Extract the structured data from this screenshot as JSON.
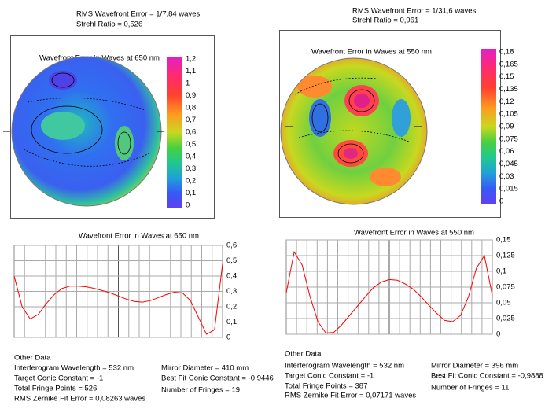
{
  "panels": [
    {
      "header": {
        "rms": "RMS Wavefront Error = 1/7,84 waves",
        "strehl": "Strehl Ratio = 0,526"
      },
      "map": {
        "title": "Wavefront Error in Waves at 650 nm",
        "colorbar_ticks": [
          {
            "value": 1.2,
            "label": "1,2"
          },
          {
            "value": 1.1,
            "label": "1,1"
          },
          1,
          {
            "value": 0.9,
            "label": "0,9"
          },
          {
            "value": 0.8,
            "label": "0,8"
          },
          {
            "value": 0.7,
            "label": "0,7"
          },
          {
            "value": 0.6,
            "label": "0,6"
          },
          {
            "value": 0.5,
            "label": "0,5"
          },
          {
            "value": 0.4,
            "label": "0,4"
          },
          {
            "value": 0.3,
            "label": "0,3"
          },
          {
            "value": 0.2,
            "label": "0,2"
          },
          {
            "value": 0.1,
            "label": "0,1"
          },
          0
        ]
      },
      "other_data": {
        "title": "Other Data",
        "wavelength": "Interferogram Wavelength = 532 nm",
        "target_conic": "Target Conic Constant = -1",
        "fringe_points": "Total Fringe Points = 526",
        "zernike_error": "RMS Zernike Fit Error = 0,08263 waves",
        "diameter": "Mirror Diameter = 410 mm",
        "best_conic": "Best Fit Conic Constant = -0,9446",
        "fringes": "Number of Fringes = 19"
      }
    },
    {
      "header": {
        "rms": "RMS Wavefront Error = 1/31,6 waves",
        "strehl": "Strehl Ratio = 0,961"
      },
      "map": {
        "title": "Wavefront Error in Waves at 550 nm",
        "colorbar_ticks": [
          {
            "value": 0.18,
            "label": "0,18"
          },
          {
            "value": 0.165,
            "label": "0,165"
          },
          {
            "value": 0.15,
            "label": "0,15"
          },
          {
            "value": 0.135,
            "label": "0,135"
          },
          {
            "value": 0.12,
            "label": "0,12"
          },
          {
            "value": 0.105,
            "label": "0,105"
          },
          {
            "value": 0.09,
            "label": "0,09"
          },
          {
            "value": 0.075,
            "label": "0,075"
          },
          {
            "value": 0.06,
            "label": "0,06"
          },
          {
            "value": 0.045,
            "label": "0,045"
          },
          {
            "value": 0.03,
            "label": "0,03"
          },
          {
            "value": 0.015,
            "label": "0,015"
          },
          0
        ]
      },
      "other_data": {
        "title": "Other Data",
        "wavelength": "Interferogram Wavelength = 532 nm",
        "target_conic": "Target Conic Constant = -1",
        "fringe_points": "Total Fringe Points = 387",
        "zernike_error": "RMS Zernike Fit Error = 0,07171 waves",
        "diameter": "Mirror Diameter = 396 mm",
        "best_conic": "Best Fit Conic Constant = -0,9888",
        "fringes": "Number of Fringes = 11"
      }
    }
  ],
  "chart_data": [
    {
      "type": "line",
      "title": "Wavefront Error in Waves at 650 nm",
      "color": "#ff0000",
      "grid": true,
      "values": [
        0.4,
        0.2,
        0.12,
        0.15,
        0.22,
        0.28,
        0.32,
        0.335,
        0.335,
        0.33,
        0.32,
        0.305,
        0.29,
        0.27,
        0.25,
        0.235,
        0.23,
        0.24,
        0.26,
        0.28,
        0.295,
        0.29,
        0.24,
        0.13,
        0.02,
        0.05,
        0.48
      ],
      "ylim": [
        0,
        0.6
      ],
      "yticks": [
        0,
        {
          "value": 0.1,
          "label": "0,1"
        },
        {
          "value": 0.2,
          "label": "0,2"
        },
        {
          "value": 0.3,
          "label": "0,3"
        },
        {
          "value": 0.4,
          "label": "0,4"
        },
        {
          "value": 0.5,
          "label": "0,5"
        },
        {
          "value": 0.6,
          "label": "0,6"
        }
      ]
    },
    {
      "type": "line",
      "title": "Wavefront Error in Waves at 550 nm",
      "color": "#ff0000",
      "grid": true,
      "values": [
        0.066,
        0.131,
        0.11,
        0.06,
        0.02,
        0.002,
        0.003,
        0.015,
        0.03,
        0.045,
        0.06,
        0.074,
        0.083,
        0.087,
        0.086,
        0.08,
        0.072,
        0.06,
        0.046,
        0.033,
        0.022,
        0.02,
        0.03,
        0.06,
        0.105,
        0.125,
        0.062
      ],
      "ylim": [
        0,
        0.15
      ],
      "yticks": [
        0,
        {
          "value": 0.025,
          "label": "0,025"
        },
        {
          "value": 0.05,
          "label": "0,05"
        },
        {
          "value": 0.075,
          "label": "0,075"
        },
        {
          "value": 0.1,
          "label": "0,1"
        },
        {
          "value": 0.125,
          "label": "0,125"
        },
        {
          "value": 0.15,
          "label": "0,15"
        }
      ]
    }
  ]
}
